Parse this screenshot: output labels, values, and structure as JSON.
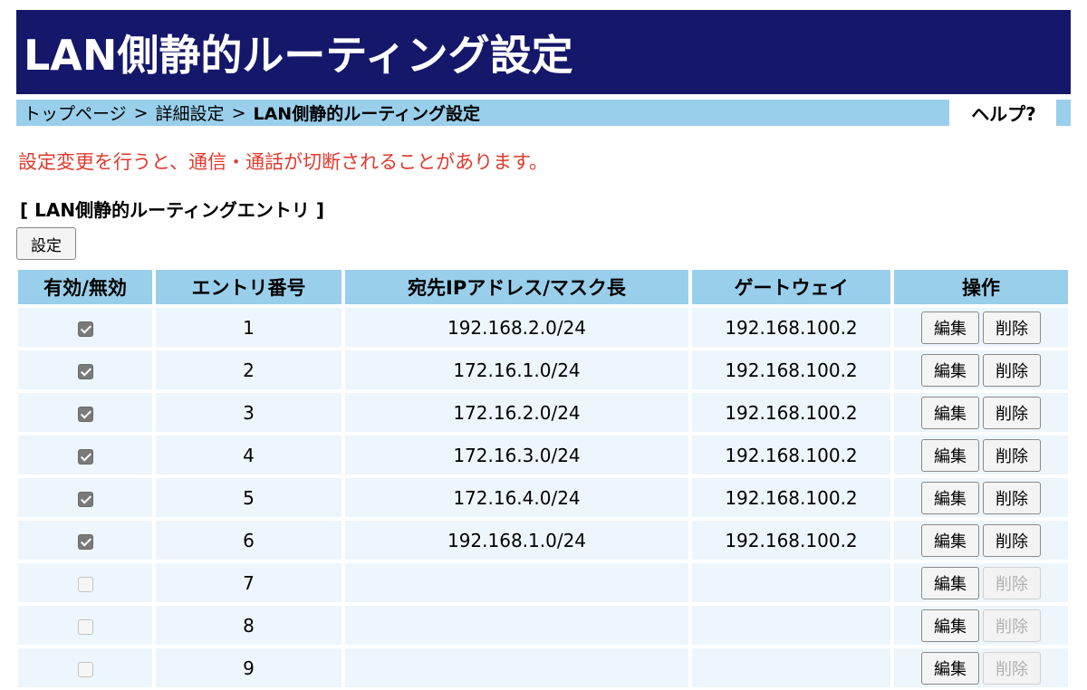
{
  "header": {
    "title": "LAN側静的ルーティング設定"
  },
  "breadcrumb": {
    "items": [
      "トップページ",
      "詳細設定"
    ],
    "separator": ">",
    "current": "LAN側静的ルーティング設定"
  },
  "help": {
    "label": "ヘルプ?"
  },
  "warning": {
    "text": "設定変更を行うと、通信・通話が切断されることがあります。"
  },
  "section": {
    "title": "[ LAN側静的ルーティングエントリ ]",
    "settings_button": "設定"
  },
  "table": {
    "headers": {
      "enable": "有効/無効",
      "entry_no": "エントリ番号",
      "destination": "宛先IPアドレス/マスク長",
      "gateway": "ゲートウェイ",
      "operation": "操作"
    },
    "edit_label": "編集",
    "delete_label": "削除",
    "rows": [
      {
        "enabled": true,
        "no": "1",
        "destination": "192.168.2.0/24",
        "gateway": "192.168.100.2",
        "delete_enabled": true
      },
      {
        "enabled": true,
        "no": "2",
        "destination": "172.16.1.0/24",
        "gateway": "192.168.100.2",
        "delete_enabled": true
      },
      {
        "enabled": true,
        "no": "3",
        "destination": "172.16.2.0/24",
        "gateway": "192.168.100.2",
        "delete_enabled": true
      },
      {
        "enabled": true,
        "no": "4",
        "destination": "172.16.3.0/24",
        "gateway": "192.168.100.2",
        "delete_enabled": true
      },
      {
        "enabled": true,
        "no": "5",
        "destination": "172.16.4.0/24",
        "gateway": "192.168.100.2",
        "delete_enabled": true
      },
      {
        "enabled": true,
        "no": "6",
        "destination": "192.168.1.0/24",
        "gateway": "192.168.100.2",
        "delete_enabled": true
      },
      {
        "enabled": false,
        "no": "7",
        "destination": "",
        "gateway": "",
        "delete_enabled": false
      },
      {
        "enabled": false,
        "no": "8",
        "destination": "",
        "gateway": "",
        "delete_enabled": false
      },
      {
        "enabled": false,
        "no": "9",
        "destination": "",
        "gateway": "",
        "delete_enabled": false
      }
    ]
  }
}
